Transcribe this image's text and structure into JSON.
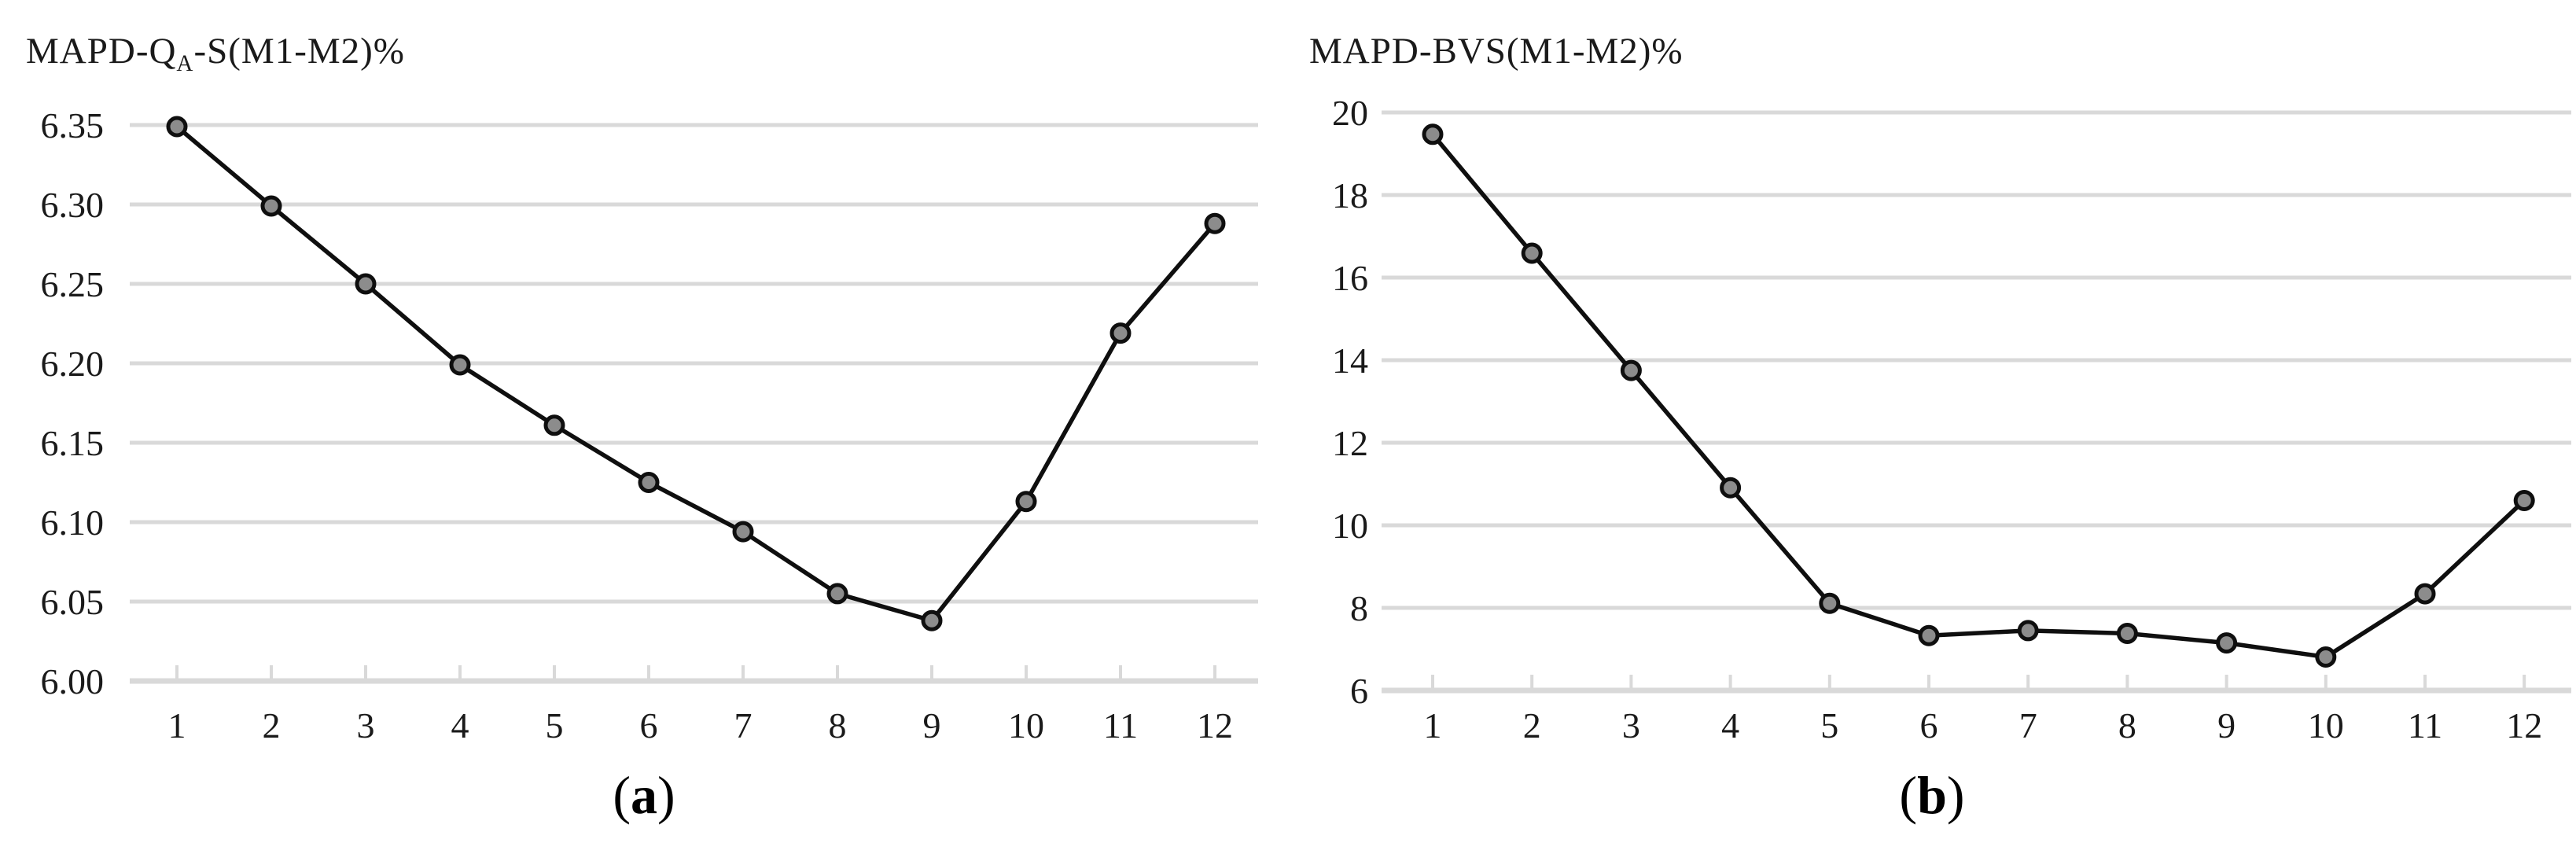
{
  "charts": [
    {
      "panel_id": "a",
      "title": {
        "prefix": "MAPD-Q",
        "subscript": "A",
        "suffix": "-S(M1-M2)%"
      },
      "caption": {
        "open": "(",
        "letter": "a",
        "close": ")"
      }
    },
    {
      "panel_id": "b",
      "title": {
        "prefix": "MAPD-BVS(M1-M2)%",
        "subscript": "",
        "suffix": ""
      },
      "caption": {
        "open": "(",
        "letter": "b",
        "close": ")"
      }
    }
  ],
  "chart_data": [
    {
      "type": "line",
      "title": "MAPD-QA-S(M1-M2)%",
      "x": [
        1,
        2,
        3,
        4,
        5,
        6,
        7,
        8,
        9,
        10,
        11,
        12
      ],
      "values": [
        6.349,
        6.299,
        6.25,
        6.199,
        6.161,
        6.125,
        6.094,
        6.055,
        6.038,
        6.113,
        6.219,
        6.288
      ],
      "xlabel": "",
      "ylabel": "",
      "xtick_labels": [
        "1",
        "2",
        "3",
        "4",
        "5",
        "6",
        "7",
        "8",
        "9",
        "10",
        "11",
        "12"
      ],
      "yticks": [
        6.0,
        6.05,
        6.1,
        6.15,
        6.2,
        6.25,
        6.3,
        6.35
      ],
      "ytick_labels": [
        "6.00",
        "6.05",
        "6.10",
        "6.15",
        "6.20",
        "6.25",
        "6.30",
        "6.35"
      ],
      "ylim": [
        6.0,
        6.35
      ],
      "grid": true,
      "legend": null,
      "marker": "circle",
      "line_color": "#0f0f0f",
      "marker_fill": "#8c8c8c",
      "grid_color": "#d9d9d9"
    },
    {
      "type": "line",
      "title": "MAPD-BVS(M1-M2)%",
      "x": [
        1,
        2,
        3,
        4,
        5,
        6,
        7,
        8,
        9,
        10,
        11,
        12
      ],
      "values": [
        19.47,
        16.59,
        13.75,
        10.91,
        8.11,
        7.33,
        7.45,
        7.38,
        7.15,
        6.81,
        8.34,
        10.6
      ],
      "xlabel": "",
      "ylabel": "",
      "xtick_labels": [
        "1",
        "2",
        "3",
        "4",
        "5",
        "6",
        "7",
        "8",
        "9",
        "10",
        "11",
        "12"
      ],
      "yticks": [
        6,
        8,
        10,
        12,
        14,
        16,
        18,
        20
      ],
      "ytick_labels": [
        "6",
        "8",
        "10",
        "12",
        "14",
        "16",
        "18",
        "20"
      ],
      "ylim": [
        6,
        20
      ],
      "grid": true,
      "legend": null,
      "marker": "circle",
      "line_color": "#0f0f0f",
      "marker_fill": "#8c8c8c",
      "grid_color": "#d9d9d9"
    }
  ]
}
